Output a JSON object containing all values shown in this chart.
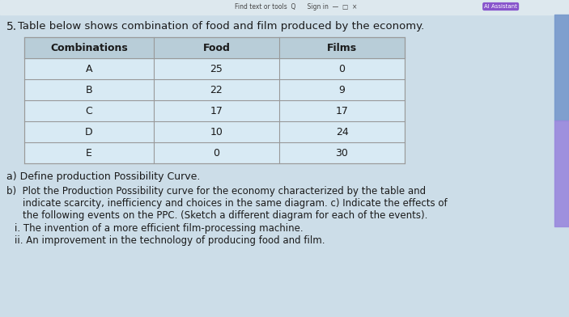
{
  "question_number": "5.",
  "intro_text": "Table below shows combination of food and film produced by the economy.",
  "table_headers": [
    "Combinations",
    "Food",
    "Films"
  ],
  "table_data": [
    [
      "A",
      "25",
      "0"
    ],
    [
      "B",
      "22",
      "9"
    ],
    [
      "C",
      "17",
      "17"
    ],
    [
      "D",
      "10",
      "24"
    ],
    [
      "E",
      "0",
      "30"
    ]
  ],
  "question_a": "a) Define production Possibility Curve.",
  "question_b1": "b)  Plot the Production Possibility curve for the economy characterized by the table and",
  "question_b2": "     indicate scarcity, inefficiency and choices in the same diagram. c) Indicate the effects of",
  "question_b3": "     the following events on the PPC. (Sketch a different diagram for each of the events).",
  "question_i": "i. The invention of a more efficient film-processing machine.",
  "question_ii": "ii. An improvement in the technology of producing food and film.",
  "bg_color": "#ccdde8",
  "table_header_bg": "#b8cdd8",
  "table_row_bg": "#d8eaf4",
  "table_alt_bg": "#cce0ec",
  "table_border": "#999999",
  "text_color": "#1a1a1a",
  "toolbar_bg": "#dde8ee",
  "toolbar_text": "#444444",
  "right_strip1": "#6666bb",
  "right_strip2": "#5599cc",
  "fig_width": 7.03,
  "fig_height": 3.92,
  "dpi": 100
}
